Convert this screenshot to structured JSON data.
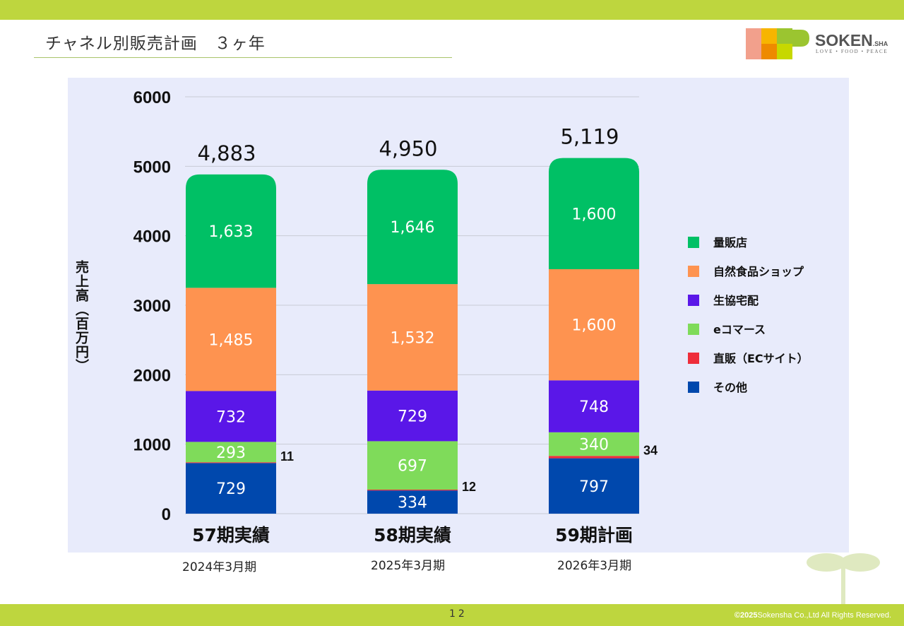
{
  "header": {
    "title": "チャネル別販売計画　３ヶ年"
  },
  "logo": {
    "name": "SOKEN",
    "suffix": ".SHA",
    "tagline": "LOVE • FOOD • PEACE"
  },
  "chart_data": {
    "type": "bar",
    "stacked": true,
    "ylabel": "売上高（百万円）",
    "ylim": [
      0,
      6000
    ],
    "yticks": [
      0,
      1000,
      2000,
      3000,
      4000,
      5000,
      6000
    ],
    "grid": true,
    "legend_position": "right",
    "categories": [
      "57期実績",
      "58期実績",
      "59期計画"
    ],
    "totals": [
      "4,883",
      "4,950",
      "5,119"
    ],
    "series": [
      {
        "name": "その他",
        "color": "#0048ad",
        "values": [
          729,
          334,
          797
        ],
        "labels": [
          "729",
          "334",
          "797"
        ],
        "label_outside": false
      },
      {
        "name": "直販（ECサイト）",
        "color": "#ee2d3a",
        "values": [
          11,
          12,
          34
        ],
        "labels": [
          "11",
          "12",
          "34"
        ],
        "label_outside": true
      },
      {
        "name": "eコマース",
        "color": "#7fdb5a",
        "values": [
          293,
          697,
          340
        ],
        "labels": [
          "293",
          "697",
          "340"
        ],
        "label_outside": false
      },
      {
        "name": "生協宅配",
        "color": "#5a17e8",
        "values": [
          732,
          729,
          748
        ],
        "labels": [
          "732",
          "729",
          "748"
        ],
        "label_outside": false
      },
      {
        "name": "自然食品ショップ",
        "color": "#fe9350",
        "values": [
          1485,
          1532,
          1600
        ],
        "labels": [
          "1,485",
          "1,532",
          "1,600"
        ],
        "label_outside": false
      },
      {
        "name": "量販店",
        "color": "#00c065",
        "values": [
          1633,
          1646,
          1600
        ],
        "labels": [
          "1,633",
          "1,646",
          "1,600"
        ],
        "label_outside": false
      }
    ],
    "legend_order": [
      "量販店",
      "自然食品ショップ",
      "生協宅配",
      "eコマース",
      "直販（ECサイト）",
      "その他"
    ]
  },
  "periods": [
    "2024年3月期",
    "2025年3月期",
    "2026年3月期"
  ],
  "footer": {
    "page_number": "12",
    "copyright_year": "©2025",
    "copyright_text": "Sokensha Co.,Ltd All Rights Reserved."
  }
}
